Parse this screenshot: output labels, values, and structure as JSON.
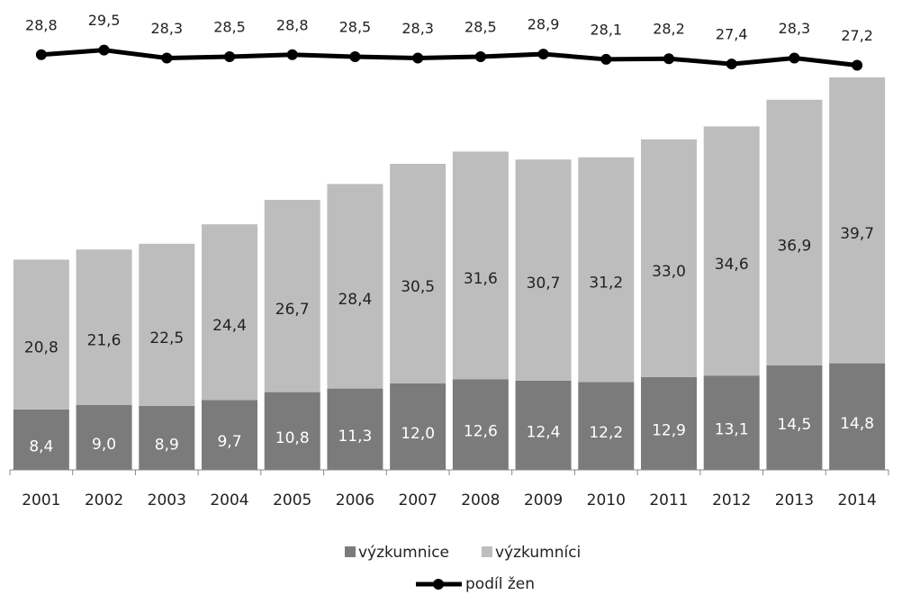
{
  "chart_data": {
    "type": "stacked_bar_line",
    "categories": [
      "2001",
      "2002",
      "2003",
      "2004",
      "2005",
      "2006",
      "2007",
      "2008",
      "2009",
      "2010",
      "2011",
      "2012",
      "2013",
      "2014"
    ],
    "series": [
      {
        "name": "výzkumnice",
        "color": "#7b7b7b",
        "type": "bar",
        "values": [
          8.4,
          9.0,
          8.9,
          9.7,
          10.8,
          11.3,
          12.0,
          12.6,
          12.4,
          12.2,
          12.9,
          13.1,
          14.5,
          14.8
        ],
        "value_labels": [
          "8,4",
          "9,0",
          "8,9",
          "9,7",
          "10,8",
          "11,3",
          "12,0",
          "12,6",
          "12,4",
          "12,2",
          "12,9",
          "13,1",
          "14,5",
          "14,8"
        ]
      },
      {
        "name": "výzkumníci",
        "color": "#bdbdbd",
        "type": "bar",
        "values": [
          20.8,
          21.6,
          22.5,
          24.4,
          26.7,
          28.4,
          30.5,
          31.6,
          30.7,
          31.2,
          33.0,
          34.6,
          36.9,
          39.7
        ],
        "value_labels": [
          "20,8",
          "21,6",
          "22,5",
          "24,4",
          "26,7",
          "28,4",
          "30,5",
          "31,6",
          "30,7",
          "31,2",
          "33,0",
          "34,6",
          "36,9",
          "39,7"
        ]
      },
      {
        "name": "podíl žen",
        "color": "#000000",
        "type": "line",
        "axis": "y2",
        "values": [
          28.8,
          29.5,
          28.3,
          28.5,
          28.8,
          28.5,
          28.3,
          28.5,
          28.9,
          28.1,
          28.2,
          27.4,
          28.3,
          27.2
        ],
        "value_labels": [
          "28,8",
          "29,5",
          "28,3",
          "28,5",
          "28,8",
          "28,5",
          "28,3",
          "28,5",
          "28,9",
          "28,1",
          "28,2",
          "27,4",
          "28,3",
          "27,2"
        ]
      }
    ],
    "ylim": [
      0,
      55
    ],
    "y2lim": [
      27,
      30
    ],
    "legend": "bottom"
  }
}
